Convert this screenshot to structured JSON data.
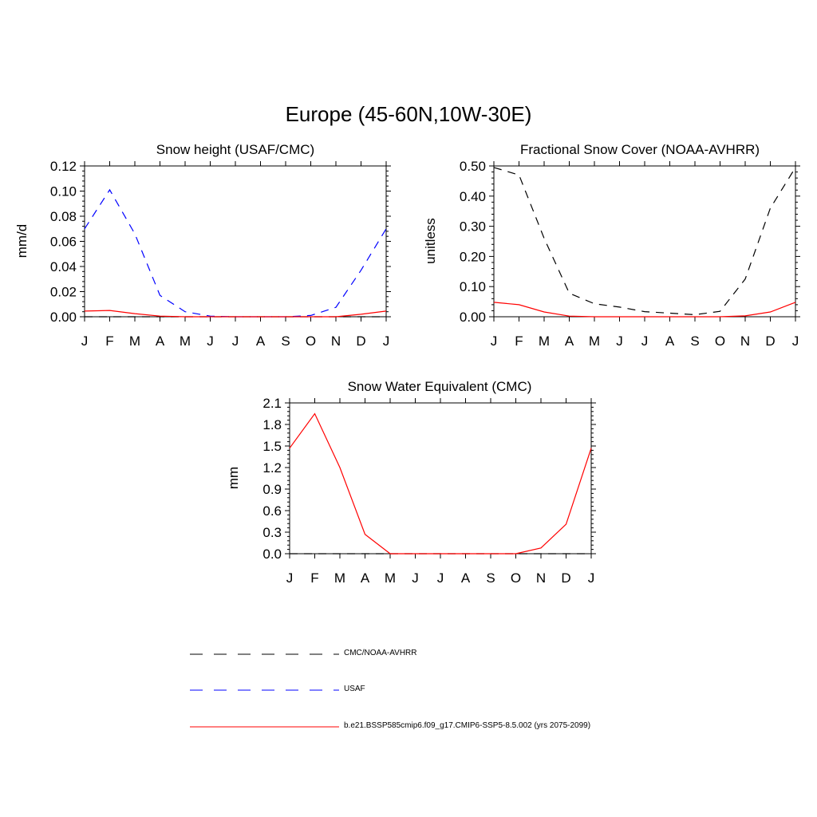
{
  "main_title": "Europe (45-60N,10W-30E)",
  "colors": {
    "obs": "#000000",
    "usaf": "#0000ff",
    "model": "#ff0000"
  },
  "chart_data": [
    {
      "type": "line",
      "title": "Snow height (USAF/CMC)",
      "ylabel": "mm/d",
      "x": [
        "J",
        "F",
        "M",
        "A",
        "M",
        "J",
        "J",
        "A",
        "S",
        "O",
        "N",
        "D",
        "J"
      ],
      "ylim": [
        0,
        0.12
      ],
      "yticks": [
        "0.00",
        "0.02",
        "0.04",
        "0.06",
        "0.08",
        "0.10",
        "0.12"
      ],
      "series": [
        {
          "name": "CMC/NOAA-AVHRR",
          "values": [
            0,
            0,
            0,
            0,
            0,
            0,
            0,
            0,
            0,
            0,
            0,
            0,
            0
          ]
        },
        {
          "name": "USAF",
          "values": [
            0.07,
            0.101,
            0.066,
            0.017,
            0.004,
            0.0005,
            0,
            0,
            0,
            0.001,
            0.0075,
            0.037,
            0.07
          ]
        },
        {
          "name": "b.e21.BSSP585cmip6.f09_g17.CMIP6-SSP5-8.5.002 (yrs 2075-2099)",
          "values": [
            0.0045,
            0.005,
            0.0025,
            0.0005,
            0,
            0,
            0,
            0,
            0,
            0,
            0,
            0.002,
            0.0045
          ]
        }
      ]
    },
    {
      "type": "line",
      "title": "Fractional Snow Cover (NOAA-AVHRR)",
      "ylabel": "unitless",
      "x": [
        "J",
        "F",
        "M",
        "A",
        "M",
        "J",
        "J",
        "A",
        "S",
        "O",
        "N",
        "D",
        "J"
      ],
      "ylim": [
        0,
        0.5
      ],
      "yticks": [
        "0.00",
        "0.10",
        "0.20",
        "0.30",
        "0.40",
        "0.50"
      ],
      "series": [
        {
          "name": "CMC/NOAA-AVHRR",
          "values": [
            0.495,
            0.47,
            0.26,
            0.078,
            0.043,
            0.032,
            0.017,
            0.012,
            0.007,
            0.018,
            0.125,
            0.36,
            0.495
          ]
        },
        {
          "name": "b.e21.BSSP585cmip6.f09_g17.CMIP6-SSP5-8.5.002 (yrs 2075-2099)",
          "values": [
            0.048,
            0.04,
            0.016,
            0.002,
            0,
            0,
            0,
            0,
            0,
            0,
            0.003,
            0.016,
            0.048
          ]
        }
      ]
    },
    {
      "type": "line",
      "title": "Snow Water Equivalent (CMC)",
      "ylabel": "mm",
      "x": [
        "J",
        "F",
        "M",
        "A",
        "M",
        "J",
        "J",
        "A",
        "S",
        "O",
        "N",
        "D",
        "J"
      ],
      "ylim": [
        0,
        2.1
      ],
      "yticks": [
        "0.0",
        "0.3",
        "0.6",
        "0.9",
        "1.2",
        "1.5",
        "1.8",
        "2.1"
      ],
      "series": [
        {
          "name": "CMC/NOAA-AVHRR",
          "values": [
            0,
            0,
            0,
            0,
            0,
            0,
            0,
            0,
            0,
            0,
            0,
            0,
            0
          ]
        },
        {
          "name": "b.e21.BSSP585cmip6.f09_g17.CMIP6-SSP5-8.5.002 (yrs 2075-2099)",
          "values": [
            1.47,
            1.95,
            1.2,
            0.27,
            0,
            0,
            0,
            0,
            0,
            0,
            0.08,
            0.41,
            1.47
          ]
        }
      ]
    }
  ],
  "legend": [
    {
      "label": "CMC/NOAA-AVHRR",
      "style": "dashed",
      "color": "#000000"
    },
    {
      "label": "USAF",
      "style": "dashed",
      "color": "#0000ff"
    },
    {
      "label": "b.e21.BSSP585cmip6.f09_g17.CMIP6-SSP5-8.5.002 (yrs 2075-2099)",
      "style": "solid",
      "color": "#ff0000"
    }
  ]
}
